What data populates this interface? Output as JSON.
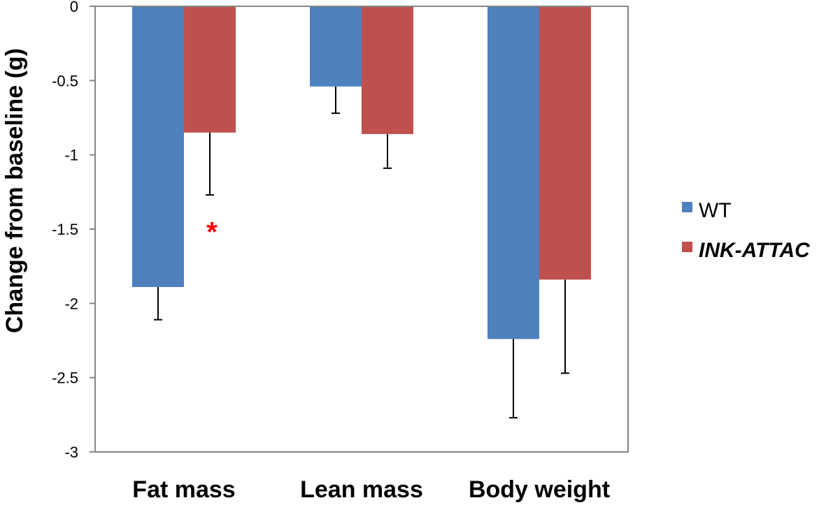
{
  "chart_data": {
    "type": "bar",
    "title": "",
    "xlabel": "",
    "ylabel": "Change from baseline (g)",
    "ylim": [
      -3,
      0
    ],
    "yticks": [
      0,
      -0.5,
      -1,
      -1.5,
      -2,
      -2.5,
      -3
    ],
    "ytick_labels": [
      "0",
      "-0.5",
      "-1",
      "-1.5",
      "-2",
      "-2.5",
      "-3"
    ],
    "grid": false,
    "legend_position": "right",
    "categories": [
      "Fat mass",
      "Lean mass",
      "Body weight"
    ],
    "series": [
      {
        "name": "WT",
        "color": "#4F81BD",
        "italic": false,
        "values": [
          -1.89,
          -0.54,
          -2.24
        ],
        "errors": [
          0.22,
          0.18,
          0.53
        ]
      },
      {
        "name": "INK-ATTAC",
        "color": "#C0504D",
        "italic": true,
        "values": [
          -0.85,
          -0.86,
          -1.84
        ],
        "errors": [
          0.42,
          0.23,
          0.63
        ]
      }
    ],
    "annotations": [
      {
        "text": "*",
        "category": "Fat mass",
        "series": "INK-ATTAC",
        "at_value": -1.45,
        "color": "#FF0000"
      }
    ]
  }
}
